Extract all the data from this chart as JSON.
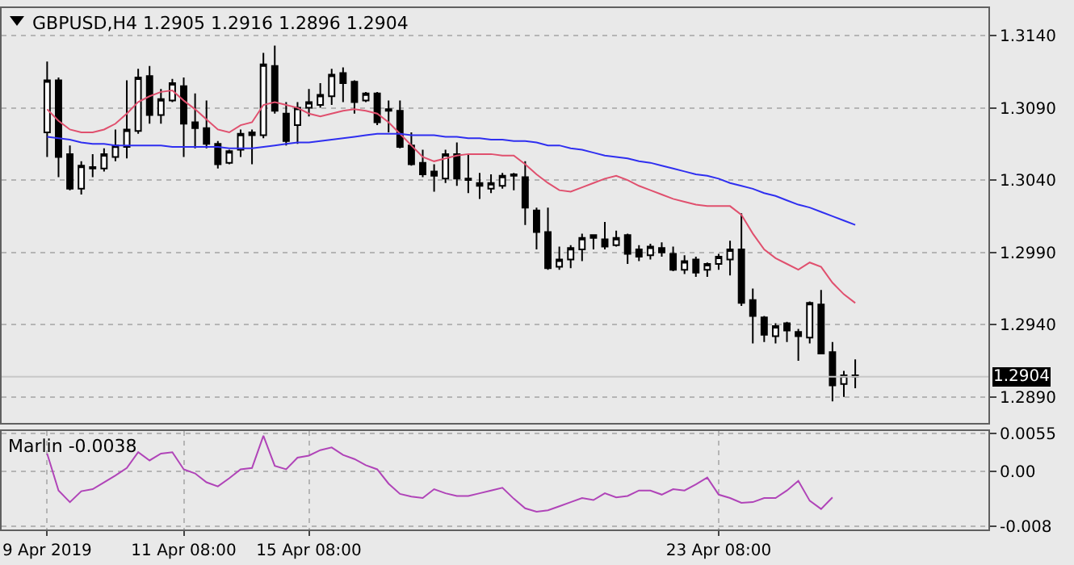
{
  "chart_data": [
    {
      "type": "candlestick",
      "title": "GBPUSD,H4 1.2905 1.2916 1.2896 1.2904",
      "categories": [
        null,
        null,
        null,
        null,
        null,
        null,
        null,
        null,
        null,
        null,
        null,
        null,
        null,
        null,
        null,
        null,
        null,
        null,
        null,
        null,
        null,
        null,
        null,
        null,
        null,
        null,
        null,
        null,
        null,
        null,
        null,
        null,
        null,
        null,
        null,
        null,
        null,
        null,
        null,
        null,
        null,
        null,
        null,
        null,
        null,
        null,
        null,
        null,
        null,
        null,
        null,
        null,
        null,
        null,
        null,
        null,
        null,
        null,
        null,
        null,
        null,
        null,
        null,
        null,
        null,
        null,
        null,
        null,
        null,
        null,
        null,
        null
      ],
      "ohlc": [
        [
          1.3073,
          1.3122,
          1.3056,
          1.3109
        ],
        [
          1.3109,
          1.3111,
          1.3042,
          1.3056
        ],
        [
          1.3058,
          1.3064,
          1.3033,
          1.3034
        ],
        [
          1.3034,
          1.3053,
          1.303,
          1.305
        ],
        [
          1.3048,
          1.3058,
          1.3042,
          1.3049
        ],
        [
          1.3048,
          1.3062,
          1.3046,
          1.3058
        ],
        [
          1.3056,
          1.3075,
          1.3053,
          1.3064
        ],
        [
          1.3063,
          1.3109,
          1.3055,
          1.3075
        ],
        [
          1.3074,
          1.3117,
          1.3072,
          1.3111
        ],
        [
          1.3112,
          1.3119,
          1.3079,
          1.3085
        ],
        [
          1.3085,
          1.3103,
          1.3079,
          1.3096
        ],
        [
          1.3095,
          1.311,
          1.3094,
          1.3107
        ],
        [
          1.3105,
          1.3111,
          1.3056,
          1.3079
        ],
        [
          1.308,
          1.31,
          1.3062,
          1.3076
        ],
        [
          1.3076,
          1.3095,
          1.3062,
          1.3065
        ],
        [
          1.3065,
          1.3067,
          1.3048,
          1.3051
        ],
        [
          1.3052,
          1.3061,
          1.3051,
          1.306
        ],
        [
          1.3061,
          1.3075,
          1.3056,
          1.3072
        ],
        [
          1.3073,
          1.3075,
          1.3051,
          1.3071
        ],
        [
          1.3071,
          1.3128,
          1.3069,
          1.312
        ],
        [
          1.3119,
          1.3133,
          1.3086,
          1.3088
        ],
        [
          1.3086,
          1.3094,
          1.3064,
          1.3067
        ],
        [
          1.3078,
          1.3094,
          1.3065,
          1.309
        ],
        [
          1.309,
          1.3103,
          1.3084,
          1.3094
        ],
        [
          1.3092,
          1.3107,
          1.309,
          1.3099
        ],
        [
          1.3098,
          1.3117,
          1.3092,
          1.3113
        ],
        [
          1.3114,
          1.3118,
          1.3094,
          1.3107
        ],
        [
          1.3108,
          1.3109,
          1.3086,
          1.3094
        ],
        [
          1.3095,
          1.3101,
          1.3094,
          1.31
        ],
        [
          1.31,
          1.3101,
          1.3078,
          1.308
        ],
        [
          1.3089,
          1.3095,
          1.3073,
          1.3088
        ],
        [
          1.3088,
          1.3095,
          1.3062,
          1.3063
        ],
        [
          1.3064,
          1.3073,
          1.305,
          1.3051
        ],
        [
          1.3052,
          1.3061,
          1.3042,
          1.3044
        ],
        [
          1.3046,
          1.3051,
          1.3032,
          1.3043
        ],
        [
          1.3041,
          1.3061,
          1.3038,
          1.3058
        ],
        [
          1.3058,
          1.3066,
          1.3036,
          1.3041
        ],
        [
          1.3041,
          1.3058,
          1.3031,
          1.304
        ],
        [
          1.3038,
          1.3045,
          1.3027,
          1.3036
        ],
        [
          1.3034,
          1.3044,
          1.3031,
          1.3038
        ],
        [
          1.3036,
          1.3045,
          1.3034,
          1.3043
        ],
        [
          1.3044,
          1.3045,
          1.3033,
          1.3043
        ],
        [
          1.3042,
          1.3053,
          1.3009,
          1.3021
        ],
        [
          1.3019,
          1.3021,
          1.2992,
          1.3004
        ],
        [
          1.3004,
          1.3021,
          1.2978,
          1.2979
        ],
        [
          1.298,
          1.2994,
          1.2978,
          1.2985
        ],
        [
          1.2985,
          1.2995,
          1.2979,
          1.2993
        ],
        [
          1.2992,
          1.3003,
          1.2984,
          1.3
        ],
        [
          1.3002,
          1.3002,
          1.2992,
          1.3
        ],
        [
          1.2999,
          1.3011,
          1.2992,
          1.2994
        ],
        [
          1.2995,
          1.3005,
          1.2994,
          1.3
        ],
        [
          1.3002,
          1.3003,
          1.2982,
          1.2989
        ],
        [
          1.2992,
          1.2995,
          1.2984,
          1.2987
        ],
        [
          1.2988,
          1.2996,
          1.2985,
          1.2994
        ],
        [
          1.2993,
          1.2997,
          1.2987,
          1.299
        ],
        [
          1.2989,
          1.2994,
          1.2977,
          1.2978
        ],
        [
          1.2978,
          1.2988,
          1.2975,
          1.2984
        ],
        [
          1.2985,
          1.2987,
          1.2973,
          1.2976
        ],
        [
          1.2978,
          1.2983,
          1.2973,
          1.2982
        ],
        [
          1.2982,
          1.2989,
          1.2978,
          1.2987
        ],
        [
          1.2985,
          1.2998,
          1.2974,
          1.2992
        ],
        [
          1.2992,
          1.3017,
          1.2953,
          1.2955
        ],
        [
          1.2957,
          1.2965,
          1.2927,
          1.2946
        ],
        [
          1.2945,
          1.2946,
          1.2928,
          1.2933
        ],
        [
          1.2932,
          1.2941,
          1.2927,
          1.2939
        ],
        [
          1.2941,
          1.2942,
          1.2928,
          1.2936
        ],
        [
          1.2935,
          1.2937,
          1.2915,
          1.2932
        ],
        [
          1.2931,
          1.2956,
          1.2927,
          1.2955
        ],
        [
          1.2954,
          1.2964,
          1.292,
          1.292
        ],
        [
          1.2921,
          1.2928,
          1.2887,
          1.2898
        ],
        [
          1.2899,
          1.2908,
          1.289,
          1.2905
        ],
        [
          1.2905,
          1.2916,
          1.2896,
          1.2904
        ]
      ],
      "series": [
        {
          "type": "line",
          "color": "#e0506e",
          "values": [
            1.3089,
            1.3081,
            1.3075,
            1.3073,
            1.3073,
            1.3075,
            1.3079,
            1.3086,
            1.3094,
            1.3098,
            1.3101,
            1.3102,
            1.3095,
            1.3089,
            1.3082,
            1.3075,
            1.3073,
            1.3078,
            1.308,
            1.3092,
            1.3094,
            1.3092,
            1.309,
            1.3086,
            1.3084,
            1.3086,
            1.3088,
            1.3089,
            1.3088,
            1.3086,
            1.308,
            1.3072,
            1.3064,
            1.3056,
            1.3053,
            1.3055,
            1.3057,
            1.3058,
            1.3058,
            1.3058,
            1.3057,
            1.3057,
            1.3051,
            1.3044,
            1.3038,
            1.3033,
            1.3032,
            1.3035,
            1.3038,
            1.3041,
            1.3043,
            1.304,
            1.3036,
            1.3033,
            1.303,
            1.3027,
            1.3025,
            1.3023,
            1.3022,
            1.3022,
            1.3022,
            1.3016,
            1.3003,
            1.2992,
            1.2986,
            1.2982,
            1.2978,
            1.2983,
            1.298,
            1.2969,
            1.2961,
            1.2955
          ]
        },
        {
          "type": "line",
          "color": "#2f2ff0",
          "values": [
            1.307,
            1.3069,
            1.3068,
            1.3066,
            1.3065,
            1.3065,
            1.3064,
            1.3064,
            1.3064,
            1.3064,
            1.3064,
            1.3063,
            1.3063,
            1.3063,
            1.3063,
            1.3063,
            1.3062,
            1.3062,
            1.3062,
            1.3063,
            1.3064,
            1.3065,
            1.3066,
            1.3066,
            1.3067,
            1.3068,
            1.3069,
            1.307,
            1.3071,
            1.3072,
            1.3072,
            1.3072,
            1.3071,
            1.3071,
            1.3071,
            1.307,
            1.307,
            1.3069,
            1.3069,
            1.3068,
            1.3068,
            1.3067,
            1.3067,
            1.3066,
            1.3064,
            1.3064,
            1.3062,
            1.3061,
            1.3059,
            1.3057,
            1.3056,
            1.3055,
            1.3053,
            1.3052,
            1.305,
            1.3048,
            1.3046,
            1.3044,
            1.3043,
            1.3041,
            1.3038,
            1.3036,
            1.3034,
            1.3031,
            1.3029,
            1.3026,
            1.3023,
            1.3021,
            1.3018,
            1.3015,
            1.3012,
            1.3009
          ]
        }
      ],
      "ylim": [
        1.2872,
        1.3159
      ],
      "yticks": [
        {
          "value": 1.289,
          "label": "1.2890"
        },
        {
          "value": 1.294,
          "label": "1.2940"
        },
        {
          "value": 1.299,
          "label": "1.2990"
        },
        {
          "value": 1.304,
          "label": "1.3040"
        },
        {
          "value": 1.309,
          "label": "1.3090"
        },
        {
          "value": 1.314,
          "label": "1.3140"
        }
      ],
      "ref_lines": [
        {
          "axis": "y",
          "value": 1.2904,
          "label": "1.2904",
          "color": "#c8c8c8"
        }
      ],
      "grid": true,
      "tick_labels": "y"
    },
    {
      "type": "line",
      "title": "Marlin -0.0038",
      "categories": [
        "9 Apr 2019",
        null,
        null,
        null,
        null,
        null,
        null,
        null,
        null,
        null,
        null,
        null,
        "11 Apr 08:00",
        null,
        null,
        null,
        null,
        null,
        null,
        null,
        null,
        null,
        null,
        "15 Apr 08:00",
        null,
        null,
        null,
        null,
        null,
        null,
        null,
        null,
        null,
        null,
        null,
        null,
        null,
        null,
        null,
        null,
        null,
        null,
        null,
        null,
        null,
        null,
        null,
        null,
        null,
        null,
        null,
        null,
        null,
        null,
        null,
        null,
        null,
        null,
        null,
        "23 Apr 08:00",
        null,
        null,
        null,
        null,
        null,
        null,
        null,
        null,
        null,
        null,
        null,
        null
      ],
      "series": [
        {
          "color": "#b044b8",
          "values": [
            0.0026,
            -0.0028,
            -0.0045,
            -0.0029,
            -0.0026,
            -0.0016,
            -0.0006,
            0.0005,
            0.0028,
            0.0016,
            0.0026,
            0.0028,
            0.0003,
            -0.0003,
            -0.0016,
            -0.0022,
            -0.001,
            0.0003,
            0.0005,
            0.0052,
            0.0008,
            0.0003,
            0.002,
            0.0023,
            0.0031,
            0.0035,
            0.0024,
            0.0018,
            0.0009,
            0.0003,
            -0.0018,
            -0.0033,
            -0.0037,
            -0.0039,
            -0.0026,
            -0.0032,
            -0.0036,
            -0.0036,
            -0.0032,
            -0.0028,
            -0.0024,
            -0.004,
            -0.0054,
            -0.0059,
            -0.0057,
            -0.0051,
            -0.0045,
            -0.0039,
            -0.0042,
            -0.0032,
            -0.0038,
            -0.0036,
            -0.0028,
            -0.0028,
            -0.0034,
            -0.0026,
            -0.0028,
            -0.0019,
            -0.0009,
            -0.0034,
            -0.0039,
            -0.0046,
            -0.0045,
            -0.0039,
            -0.0039,
            -0.0028,
            -0.0014,
            -0.0043,
            -0.0055,
            -0.0038,
            null,
            null
          ]
        }
      ],
      "ylim": [
        -0.0085,
        0.0059
      ],
      "yticks": [
        0.0055,
        {
          "value": 0,
          "label": "0.00"
        },
        -0.008
      ],
      "grid": true
    }
  ]
}
